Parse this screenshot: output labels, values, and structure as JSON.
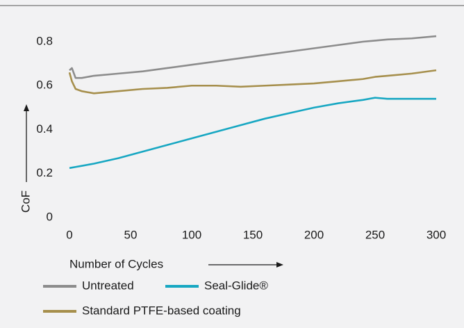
{
  "chart_data": {
    "type": "line",
    "x_label": "Number of Cycles",
    "y_label": "CoF",
    "x": [
      0,
      2,
      5,
      10,
      20,
      40,
      60,
      80,
      100,
      120,
      140,
      160,
      180,
      200,
      220,
      240,
      250,
      260,
      280,
      300
    ],
    "series": [
      {
        "name": "Untreated",
        "color": "#8c8c8c",
        "values": [
          0.67,
          0.68,
          0.635,
          0.635,
          0.645,
          0.655,
          0.665,
          0.68,
          0.695,
          0.71,
          0.725,
          0.74,
          0.755,
          0.77,
          0.785,
          0.8,
          0.805,
          0.81,
          0.815,
          0.825
        ]
      },
      {
        "name": "Seal-Glide®",
        "color": "#17a7c2",
        "values": [
          0.225,
          0.227,
          0.23,
          0.235,
          0.245,
          0.27,
          0.3,
          0.33,
          0.36,
          0.39,
          0.42,
          0.45,
          0.475,
          0.5,
          0.52,
          0.535,
          0.545,
          0.54,
          0.54,
          0.54
        ]
      },
      {
        "name": "Standard PTFE-based coating",
        "color": "#a68f4c",
        "values": [
          0.66,
          0.62,
          0.585,
          0.575,
          0.565,
          0.575,
          0.585,
          0.59,
          0.6,
          0.6,
          0.595,
          0.6,
          0.605,
          0.61,
          0.62,
          0.63,
          0.64,
          0.645,
          0.655,
          0.67
        ]
      }
    ],
    "xlim": [
      0,
      300
    ],
    "xticks": [
      0,
      50,
      100,
      150,
      200,
      250,
      300
    ],
    "ylim": [
      0,
      0.85
    ],
    "yticks": [
      0,
      0.2,
      0.4,
      0.6,
      0.8
    ],
    "grid": false
  }
}
